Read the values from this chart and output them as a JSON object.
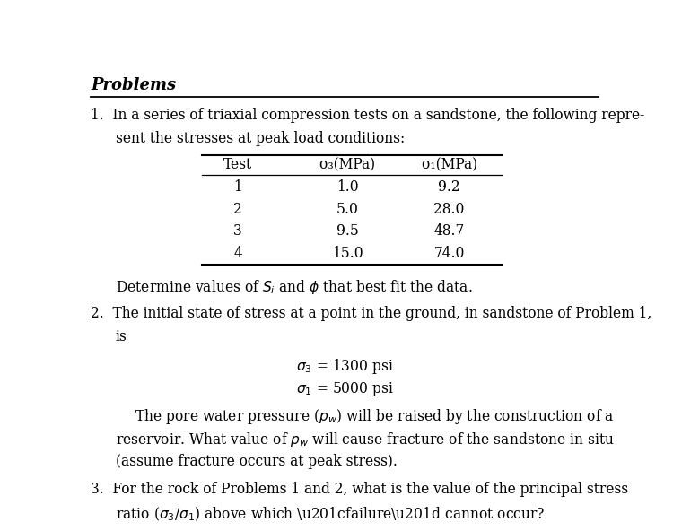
{
  "title": "Problems",
  "background_color": "#ffffff",
  "text_color": "#000000",
  "table_headers": [
    "Test",
    "σ₃(MPa)",
    "σ₁(MPa)"
  ],
  "table_rows": [
    [
      "1",
      "1.0",
      "9.2"
    ],
    [
      "2",
      "5.0",
      "28.0"
    ],
    [
      "3",
      "9.5",
      "48.7"
    ],
    [
      "4",
      "15.0",
      "74.0"
    ]
  ]
}
